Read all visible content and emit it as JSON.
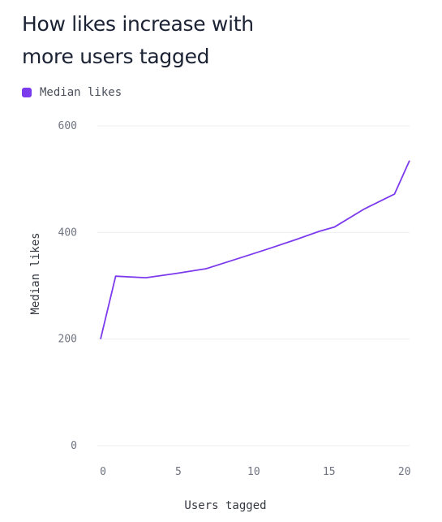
{
  "chart_data": {
    "type": "line",
    "title": "How likes increase with more users tagged",
    "xlabel": "Users tagged",
    "ylabel": "Median likes",
    "xlim": [
      0,
      20.5
    ],
    "ylim": [
      0,
      600
    ],
    "xticks": [
      0,
      5,
      10,
      15,
      20
    ],
    "yticks": [
      0,
      200,
      400,
      600
    ],
    "grid": true,
    "legend": "top-left",
    "series": [
      {
        "name": "Median likes",
        "color": "#7c3aed",
        "x": [
          0,
          1,
          3,
          5,
          7,
          9,
          11,
          13,
          14.5,
          15.5,
          17.5,
          19.5,
          20.5
        ],
        "y": [
          200,
          318,
          315,
          323,
          332,
          350,
          368,
          387,
          402,
          410,
          444,
          472,
          535
        ]
      }
    ]
  }
}
